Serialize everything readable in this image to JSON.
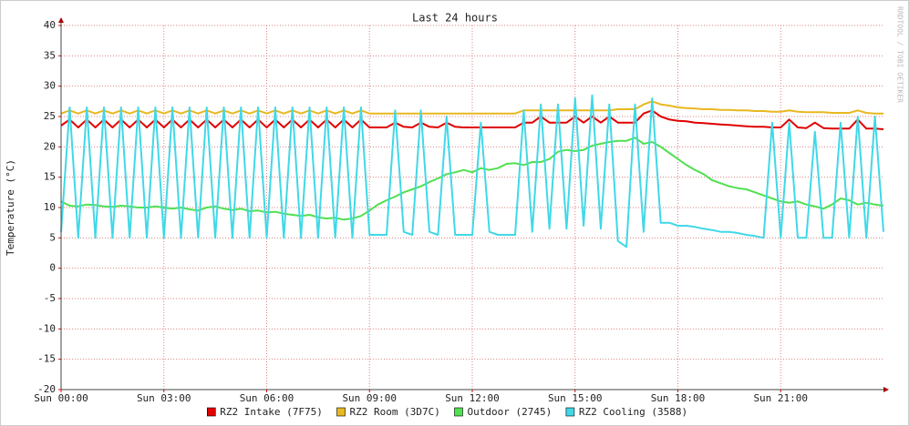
{
  "chart_data": {
    "type": "line",
    "title": "Last 24 hours",
    "y_label": "Temperature (°C)",
    "credit": "RRDTOOL / TOBI OETIKER",
    "x": [
      0,
      0.25,
      0.5,
      0.75,
      1,
      1.25,
      1.5,
      1.75,
      2,
      2.25,
      2.5,
      2.75,
      3,
      3.25,
      3.5,
      3.75,
      4,
      4.25,
      4.5,
      4.75,
      5,
      5.25,
      5.5,
      5.75,
      6,
      6.25,
      6.5,
      6.75,
      7,
      7.25,
      7.5,
      7.75,
      8,
      8.25,
      8.5,
      8.75,
      9,
      9.25,
      9.5,
      9.75,
      10,
      10.25,
      10.5,
      10.75,
      11,
      11.25,
      11.5,
      11.75,
      12,
      12.25,
      12.5,
      12.75,
      13,
      13.25,
      13.5,
      13.75,
      14,
      14.25,
      14.5,
      14.75,
      15,
      15.25,
      15.5,
      15.75,
      16,
      16.25,
      16.5,
      16.75,
      17,
      17.25,
      17.5,
      17.75,
      18,
      18.25,
      18.5,
      18.75,
      19,
      19.25,
      19.5,
      19.75,
      20,
      20.25,
      20.5,
      20.75,
      21,
      21.25,
      21.5,
      21.75,
      22,
      22.25,
      22.5,
      22.75,
      23,
      23.25,
      23.5,
      23.75,
      24
    ],
    "xlim": [
      0,
      24
    ],
    "xticks": [
      {
        "value": 0,
        "label": "Sun 00:00"
      },
      {
        "value": 3,
        "label": "Sun 03:00"
      },
      {
        "value": 6,
        "label": "Sun 06:00"
      },
      {
        "value": 9,
        "label": "Sun 09:00"
      },
      {
        "value": 12,
        "label": "Sun 12:00"
      },
      {
        "value": 15,
        "label": "Sun 15:00"
      },
      {
        "value": 18,
        "label": "Sun 18:00"
      },
      {
        "value": 21,
        "label": "Sun 21:00"
      }
    ],
    "ylim": [
      -20,
      40
    ],
    "yticks": [
      -20,
      -15,
      -10,
      -5,
      0,
      5,
      10,
      15,
      20,
      25,
      30,
      35,
      40
    ],
    "grid": true,
    "legend": "bottom",
    "series": [
      {
        "name": "RZ2 Intake (7F75)",
        "color": "#e00000",
        "values": [
          23.5,
          24.5,
          23.2,
          24.5,
          23.2,
          24.5,
          23.2,
          24.5,
          23.2,
          24.5,
          23.2,
          24.5,
          23.2,
          24.5,
          23.2,
          24.5,
          23.2,
          24.5,
          23.2,
          24.5,
          23.2,
          24.5,
          23.2,
          24.5,
          23.2,
          24.5,
          23.2,
          24.5,
          23.2,
          24.5,
          23.2,
          24.5,
          23.2,
          24.5,
          23.2,
          24.5,
          23.2,
          23.2,
          23.2,
          24,
          23.3,
          23.2,
          24,
          23.3,
          23.2,
          24,
          23.3,
          23.2,
          23.2,
          23.2,
          23.2,
          23.2,
          23.2,
          23.2,
          24,
          24,
          25,
          24,
          24,
          24,
          25,
          24,
          25,
          24,
          25,
          24,
          24,
          24,
          25.5,
          26,
          25,
          24.5,
          24.3,
          24.2,
          24,
          23.9,
          23.8,
          23.7,
          23.6,
          23.5,
          23.4,
          23.3,
          23.3,
          23.2,
          23.2,
          24.5,
          23.2,
          23.1,
          24,
          23.1,
          23,
          23,
          23,
          24.5,
          23,
          23,
          22.9
        ]
      },
      {
        "name": "RZ2 Room (3D7C)",
        "color": "#e8b820",
        "values": [
          25.5,
          26,
          25.5,
          26,
          25.5,
          26,
          25.5,
          26,
          25.5,
          26,
          25.5,
          26,
          25.5,
          26,
          25.5,
          26,
          25.5,
          26,
          25.5,
          26,
          25.5,
          26,
          25.5,
          26,
          25.5,
          26,
          25.5,
          26,
          25.5,
          26,
          25.5,
          26,
          25.5,
          26,
          25.5,
          26,
          25.5,
          25.5,
          25.5,
          25.5,
          25.5,
          25.5,
          25.5,
          25.5,
          25.5,
          25.5,
          25.5,
          25.5,
          25.5,
          25.5,
          25.5,
          25.5,
          25.5,
          25.5,
          26,
          26,
          26,
          26,
          26,
          26,
          26,
          26,
          26,
          26,
          26,
          26.2,
          26.2,
          26.2,
          27,
          27.5,
          27,
          26.8,
          26.5,
          26.4,
          26.3,
          26.2,
          26.2,
          26.1,
          26.1,
          26,
          26,
          25.9,
          25.9,
          25.8,
          25.8,
          26,
          25.8,
          25.7,
          25.7,
          25.7,
          25.6,
          25.6,
          25.6,
          26,
          25.6,
          25.5,
          25.5
        ]
      },
      {
        "name": "Outdoor (2745)",
        "color": "#50e050",
        "values": [
          11,
          10.3,
          10.2,
          10.5,
          10.4,
          10.2,
          10.1,
          10.3,
          10.2,
          10,
          10,
          10.2,
          10,
          9.8,
          10,
          9.7,
          9.5,
          10,
          10.2,
          9.8,
          9.6,
          9.8,
          9.4,
          9.5,
          9.2,
          9.3,
          9,
          8.8,
          8.6,
          8.8,
          8.4,
          8.2,
          8.3,
          8,
          8.2,
          8.6,
          9.5,
          10.5,
          11.2,
          11.8,
          12.5,
          13,
          13.5,
          14.2,
          14.8,
          15.5,
          15.8,
          16.2,
          15.8,
          16.5,
          16.2,
          16.5,
          17.2,
          17.3,
          17,
          17.5,
          17.5,
          18,
          19.2,
          19.5,
          19.3,
          19.5,
          20.2,
          20.5,
          20.8,
          21,
          21,
          21.5,
          20.5,
          20.8,
          20,
          19,
          18,
          17,
          16.2,
          15.5,
          14.5,
          14,
          13.5,
          13.2,
          13,
          12.5,
          12,
          11.5,
          11,
          10.8,
          11,
          10.5,
          10.2,
          9.8,
          10.5,
          11.5,
          11.2,
          10.5,
          10.8,
          10.5,
          10.3
        ]
      },
      {
        "name": "RZ2 Cooling (3588)",
        "color": "#40d8e8",
        "values": [
          6,
          26.5,
          5,
          26.5,
          5,
          26.5,
          5,
          26.5,
          5,
          26.5,
          5,
          26.5,
          5,
          26.5,
          5,
          26.5,
          5,
          26.5,
          5,
          26.5,
          5,
          26.5,
          5,
          26.5,
          5,
          26.5,
          5,
          26.5,
          5,
          26.5,
          5,
          26.5,
          5,
          26.5,
          5,
          26.5,
          5.5,
          5.5,
          5.5,
          26,
          6,
          5.5,
          26,
          6,
          5.5,
          25,
          5.5,
          5.5,
          5.5,
          24,
          6,
          5.5,
          5.5,
          5.5,
          26,
          6,
          27,
          6.5,
          27,
          6.5,
          28,
          7,
          28.5,
          6.5,
          27,
          4.5,
          3.5,
          27,
          6,
          28,
          7.5,
          7.5,
          7,
          7,
          6.8,
          6.5,
          6.3,
          6,
          6,
          5.8,
          5.5,
          5.3,
          5,
          24,
          5,
          24,
          5,
          5,
          22.5,
          5,
          5,
          24,
          5,
          25,
          5,
          25,
          6
        ]
      }
    ]
  }
}
